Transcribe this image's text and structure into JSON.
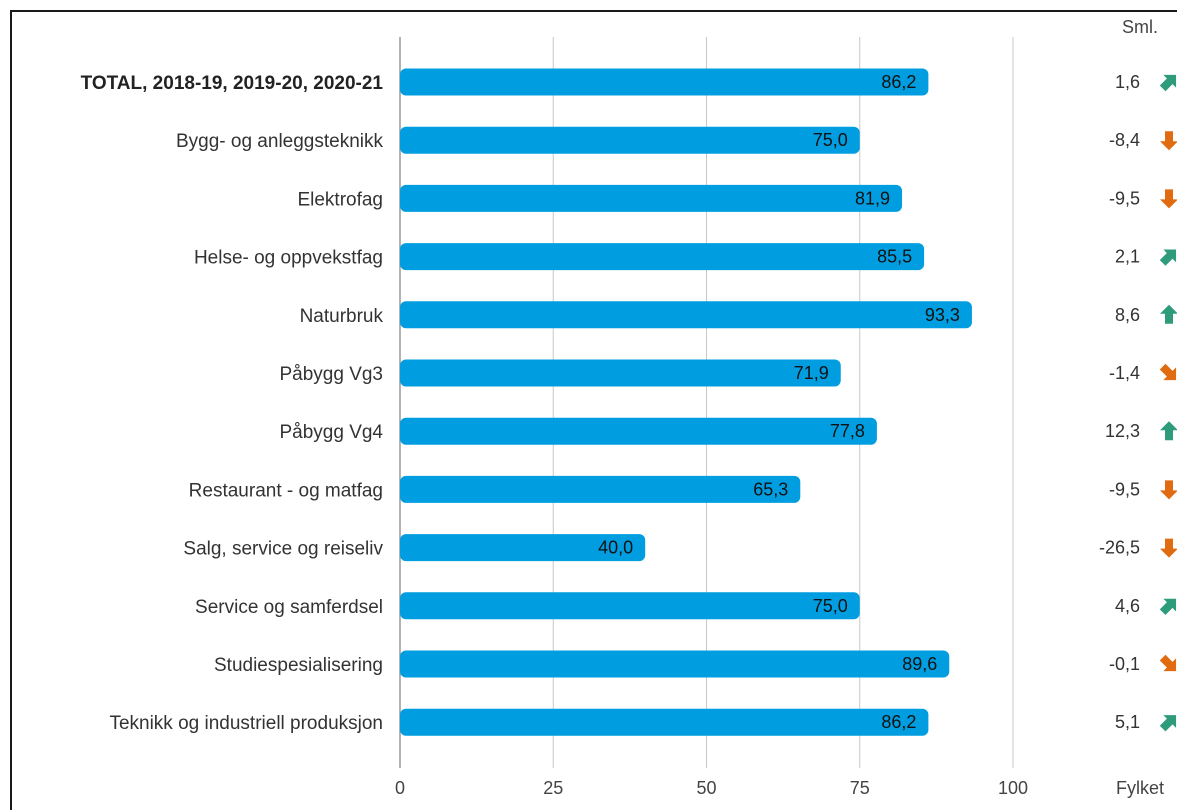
{
  "chart_data": {
    "type": "bar",
    "orientation": "horizontal",
    "xlim": [
      0,
      100
    ],
    "ticks": [
      0,
      25,
      50,
      75,
      100
    ],
    "grid": true,
    "bar_color": "#009ee0",
    "up_color": "#2e9c7a",
    "down_color": "#e06b10",
    "categories": [
      "TOTAL, 2018-19, 2019-20, 2020-21",
      "Bygg- og anleggsteknikk",
      "Elektrofag",
      "Helse- og oppvekstfag",
      "Naturbruk",
      "Påbygg Vg3",
      "Påbygg Vg4",
      "Restaurant - og matfag",
      "Salg, service og reiseliv",
      "Service og samferdsel",
      "Studiespesialisering",
      "Teknikk og industriell produksjon"
    ],
    "values": [
      86.2,
      75.0,
      81.9,
      85.5,
      93.3,
      71.9,
      77.8,
      65.3,
      40.0,
      75.0,
      89.6,
      86.2
    ],
    "value_labels": [
      "86,2",
      "75,0",
      "81,9",
      "85,5",
      "93,3",
      "71,9",
      "77,8",
      "65,3",
      "40,0",
      "75,0",
      "89,6",
      "86,2"
    ],
    "comparison": {
      "header": "Sml.",
      "footer": "Fylket",
      "values": [
        1.6,
        -8.4,
        -9.5,
        2.1,
        8.6,
        -1.4,
        12.3,
        -9.5,
        -26.5,
        4.6,
        -0.1,
        5.1
      ],
      "labels": [
        "1,6",
        "-8,4",
        "-9,5",
        "2,1",
        "8,6",
        "-1,4",
        "12,3",
        "-9,5",
        "-26,5",
        "4,6",
        "-0,1",
        "5,1"
      ],
      "arrows": [
        "diagonal-up-arrow-icon",
        "down-arrow-icon",
        "down-arrow-icon",
        "diagonal-up-arrow-icon",
        "up-arrow-icon",
        "diagonal-down-arrow-icon",
        "up-arrow-icon",
        "down-arrow-icon",
        "down-arrow-icon",
        "diagonal-up-arrow-icon",
        "diagonal-down-arrow-icon",
        "diagonal-up-arrow-icon"
      ]
    }
  }
}
